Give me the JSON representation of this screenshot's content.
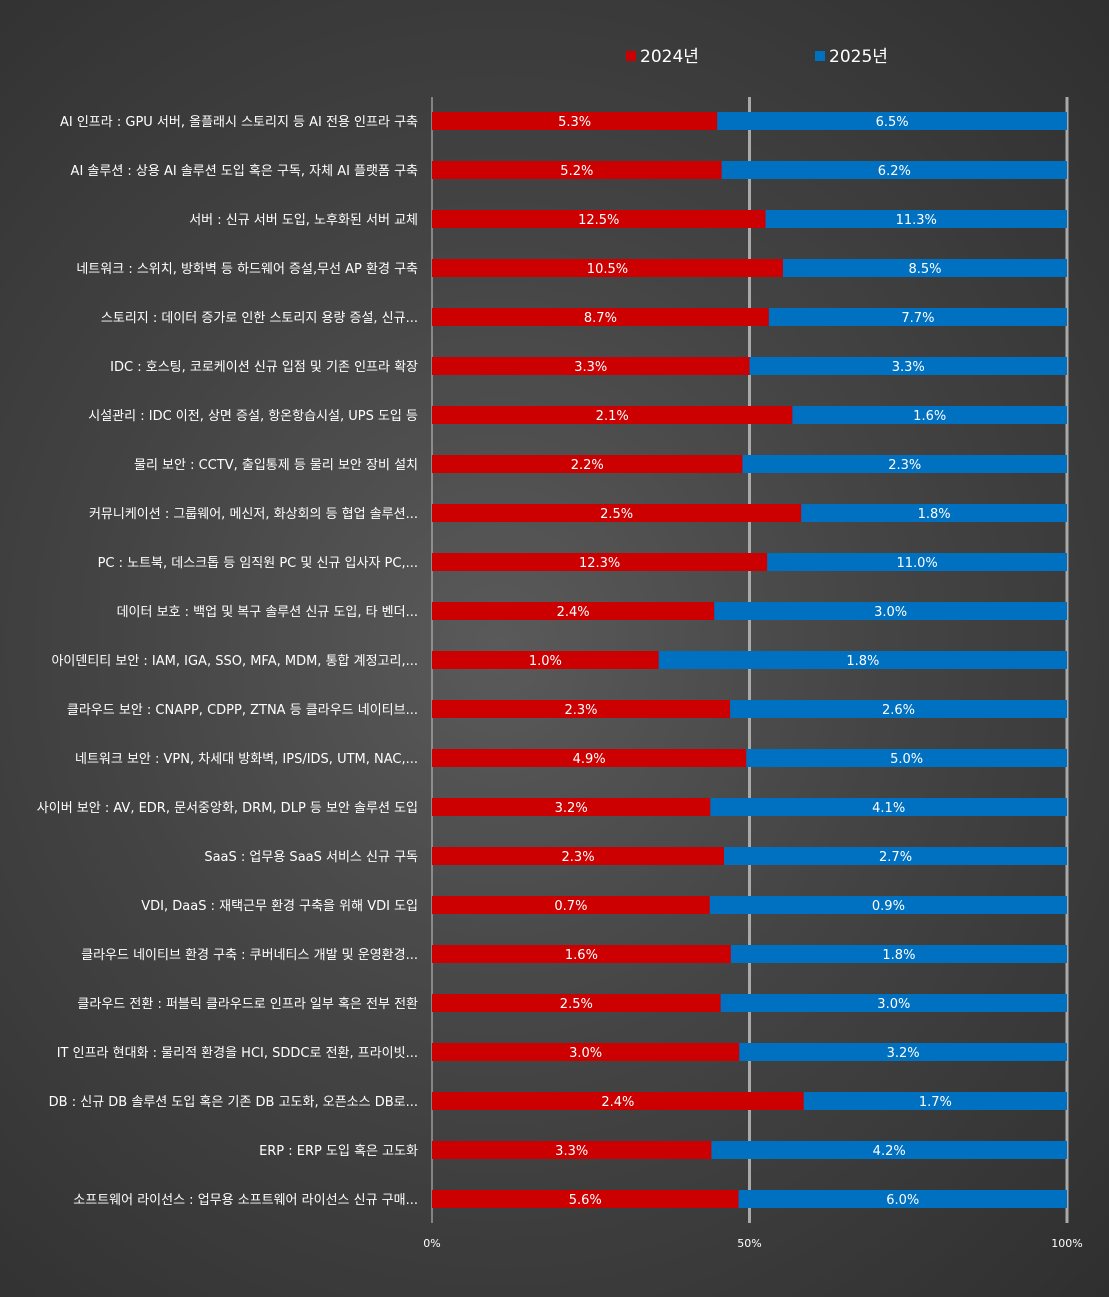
{
  "chart_data": {
    "type": "bar",
    "stacked": "percent",
    "orientation": "horizontal",
    "categories": [
      "AI 인프라 : GPU 서버, 올플래시 스토리지 등 AI 전용 인프라 구축",
      "AI 솔루션 : 상용 AI 솔루션 도입 혹은 구독, 자체 AI 플랫폼 구축",
      "서버 : 신규 서버 도입, 노후화된 서버 교체",
      "네트워크 : 스위치, 방화벽 등 하드웨어 증설,무선 AP 환경 구축",
      "스토리지 : 데이터 증가로 인한 스토리지 용량 증설, 신규...",
      "IDC : 호스팅, 코로케이션 신규 입점 및 기존 인프라 확장",
      "시설관리 : IDC 이전, 상면 증설, 항온항습시설, UPS 도입 등",
      "물리 보안 : CCTV, 출입통제 등 물리 보안 장비 설치",
      "커뮤니케이션 : 그룹웨어, 메신저, 화상회의 등 협업 솔루션...",
      "PC : 노트북, 데스크톱 등 임직원 PC 및 신규 입사자 PC,...",
      "데이터 보호 : 백업 및 복구 솔루션 신규 도입, 타 벤더...",
      "아이덴티티 보안 : IAM, IGA, SSO, MFA, MDM, 통합 계정고리,...",
      "클라우드 보안 : CNAPP, CDPP, ZTNA 등 클라우드 네이티브...",
      "네트워크 보안 : VPN, 차세대 방화벽, IPS/IDS, UTM, NAC,...",
      "사이버 보안 : AV, EDR, 문서중앙화, DRM, DLP 등 보안 솔루션 도입",
      "SaaS : 업무용 SaaS 서비스 신규 구독",
      "VDI, DaaS : 재택근무 환경 구축을 위해 VDI 도입",
      "클라우드 네이티브 환경 구축 : 쿠버네티스 개발 및 운영환경...",
      "클라우드 전환 : 퍼블릭 클라우드로 인프라 일부 혹은 전부 전환",
      "IT 인프라 현대화 : 물리적 환경을 HCI, SDDC로 전환, 프라이빗...",
      "DB : 신규 DB 솔루션 도입 혹은 기존 DB 고도화, 오픈소스 DB로...",
      "ERP : ERP 도입 혹은 고도화",
      "소프트웨어 라이선스 : 업무용 소프트웨어 라이선스 신규 구매..."
    ],
    "series": [
      {
        "name": "2024년",
        "color": "#cc0000",
        "values": [
          5.3,
          5.2,
          12.5,
          10.5,
          8.7,
          3.3,
          2.1,
          2.2,
          2.5,
          12.3,
          2.4,
          1.0,
          2.3,
          4.9,
          3.2,
          2.3,
          0.7,
          1.6,
          2.5,
          3.0,
          2.4,
          3.3,
          5.6
        ],
        "labels": [
          "5.3%",
          "5.2%",
          "12.5%",
          "10.5%",
          "8.7%",
          "3.3%",
          "2.1%",
          "2.2%",
          "2.5%",
          "12.3%",
          "2.4%",
          "1.0%",
          "2.3%",
          "4.9%",
          "3.2%",
          "2.3%",
          "0.7%",
          "1.6%",
          "2.5%",
          "3.0%",
          "2.4%",
          "3.3%",
          "5.6%"
        ]
      },
      {
        "name": "2025년",
        "color": "#0070c0",
        "values": [
          6.5,
          6.2,
          11.3,
          8.5,
          7.7,
          3.3,
          1.6,
          2.3,
          1.8,
          11.0,
          3.0,
          1.8,
          2.6,
          5.0,
          4.1,
          2.7,
          0.9,
          1.8,
          3.0,
          3.2,
          1.7,
          4.2,
          6.0
        ],
        "labels": [
          "6.5%",
          "6.2%",
          "11.3%",
          "8.5%",
          "7.7%",
          "3.3%",
          "1.6%",
          "2.3%",
          "1.8%",
          "11.0%",
          "3.0%",
          "1.8%",
          "2.6%",
          "5.0%",
          "4.1%",
          "2.7%",
          "0.9%",
          "1.8%",
          "3.0%",
          "3.2%",
          "1.7%",
          "4.2%",
          "6.0%"
        ]
      }
    ],
    "xticks": [
      "0%",
      "50%",
      "100%"
    ],
    "xlim": [
      0,
      100
    ],
    "grid": true,
    "legend": "top-right"
  }
}
